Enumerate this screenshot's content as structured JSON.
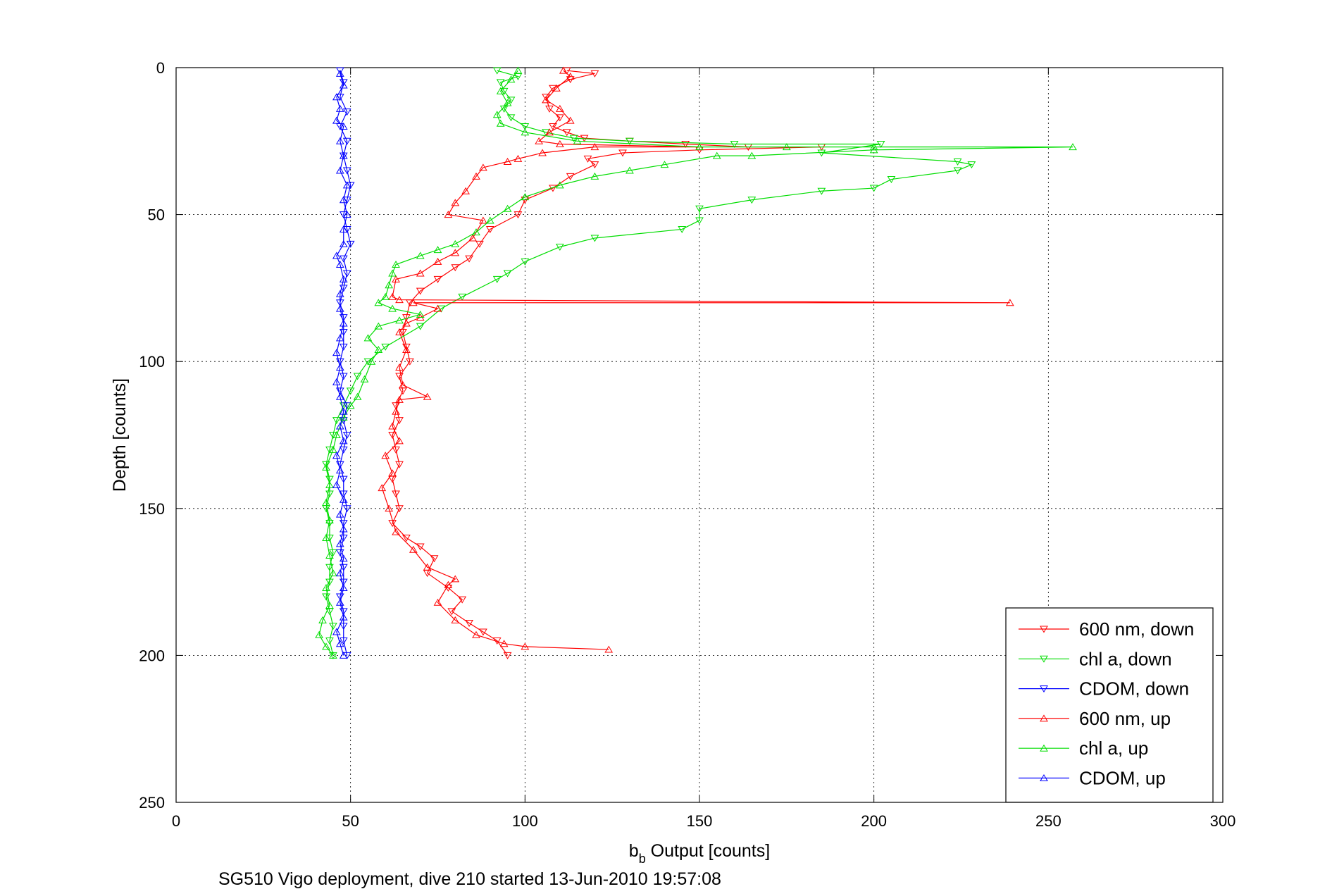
{
  "chart_data": {
    "type": "line",
    "xlabel_main": "b",
    "xlabel_sub": "b",
    "xlabel_rest": " Output [counts]",
    "ylabel": "Depth [counts]",
    "caption": "SG510 Vigo deployment, dive 210 started 13-Jun-2010 19:57:08",
    "xlim": [
      0,
      300
    ],
    "ylim": [
      0,
      250
    ],
    "y_reversed": true,
    "grid": true,
    "xticks": [
      0,
      50,
      100,
      150,
      200,
      250,
      300
    ],
    "yticks": [
      0,
      50,
      100,
      150,
      200,
      250
    ],
    "xtick_labels": [
      "0",
      "50",
      "100",
      "150",
      "200",
      "250",
      "300"
    ],
    "ytick_labels": [
      "0",
      "50",
      "100",
      "150",
      "200",
      "250"
    ],
    "legend_position": "bottom-right",
    "series": [
      {
        "name": "600 nm, down",
        "color": "#ff0000",
        "marker": "triangle-down",
        "points": [
          [
            112,
            1
          ],
          [
            120,
            2
          ],
          [
            113,
            4
          ],
          [
            108,
            7
          ],
          [
            106,
            10
          ],
          [
            107,
            14
          ],
          [
            110,
            17
          ],
          [
            108,
            20
          ],
          [
            112,
            22
          ],
          [
            117,
            24
          ],
          [
            130,
            25
          ],
          [
            146,
            26
          ],
          [
            164,
            27
          ],
          [
            185,
            27
          ],
          [
            150,
            28
          ],
          [
            128,
            29
          ],
          [
            118,
            31
          ],
          [
            120,
            33
          ],
          [
            113,
            37
          ],
          [
            108,
            41
          ],
          [
            100,
            45
          ],
          [
            98,
            50
          ],
          [
            90,
            55
          ],
          [
            87,
            60
          ],
          [
            84,
            65
          ],
          [
            80,
            68
          ],
          [
            75,
            72
          ],
          [
            70,
            76
          ],
          [
            67,
            80
          ],
          [
            66,
            85
          ],
          [
            65,
            90
          ],
          [
            66,
            95
          ],
          [
            67,
            100
          ],
          [
            64,
            105
          ],
          [
            65,
            110
          ],
          [
            63,
            115
          ],
          [
            64,
            120
          ],
          [
            62,
            125
          ],
          [
            63,
            130
          ],
          [
            64,
            135
          ],
          [
            62,
            140
          ],
          [
            63,
            145
          ],
          [
            64,
            150
          ],
          [
            62,
            155
          ],
          [
            66,
            160
          ],
          [
            70,
            163
          ],
          [
            74,
            167
          ],
          [
            72,
            172
          ],
          [
            78,
            177
          ],
          [
            82,
            181
          ],
          [
            79,
            185
          ],
          [
            84,
            189
          ],
          [
            88,
            192
          ],
          [
            92,
            195
          ],
          [
            95,
            200
          ]
        ]
      },
      {
        "name": "chl a, down",
        "color": "#00dd00",
        "marker": "triangle-down",
        "points": [
          [
            92,
            1
          ],
          [
            98,
            3
          ],
          [
            93,
            5
          ],
          [
            94,
            8
          ],
          [
            96,
            11
          ],
          [
            94,
            14
          ],
          [
            96,
            17
          ],
          [
            100,
            20
          ],
          [
            106,
            22
          ],
          [
            114,
            24
          ],
          [
            130,
            25
          ],
          [
            160,
            26
          ],
          [
            202,
            26
          ],
          [
            185,
            29
          ],
          [
            224,
            32
          ],
          [
            228,
            33
          ],
          [
            224,
            35
          ],
          [
            205,
            38
          ],
          [
            200,
            41
          ],
          [
            185,
            42
          ],
          [
            165,
            45
          ],
          [
            150,
            48
          ],
          [
            150,
            52
          ],
          [
            145,
            55
          ],
          [
            120,
            58
          ],
          [
            110,
            61
          ],
          [
            100,
            66
          ],
          [
            95,
            70
          ],
          [
            92,
            72
          ],
          [
            82,
            78
          ],
          [
            76,
            82
          ],
          [
            70,
            88
          ],
          [
            60,
            95
          ],
          [
            55,
            100
          ],
          [
            52,
            105
          ],
          [
            50,
            110
          ],
          [
            48,
            115
          ],
          [
            46,
            120
          ],
          [
            45,
            125
          ],
          [
            44,
            130
          ],
          [
            43,
            135
          ],
          [
            44,
            140
          ],
          [
            44,
            145
          ],
          [
            43,
            150
          ],
          [
            44,
            155
          ],
          [
            44,
            160
          ],
          [
            45,
            165
          ],
          [
            44,
            170
          ],
          [
            44,
            175
          ],
          [
            43,
            180
          ],
          [
            44,
            185
          ],
          [
            45,
            190
          ],
          [
            44,
            195
          ],
          [
            45,
            200
          ]
        ]
      },
      {
        "name": "CDOM, down",
        "color": "#0000ff",
        "marker": "triangle-down",
        "points": [
          [
            47,
            1
          ],
          [
            48,
            5
          ],
          [
            47,
            10
          ],
          [
            49,
            15
          ],
          [
            47,
            20
          ],
          [
            49,
            25
          ],
          [
            48,
            30
          ],
          [
            49,
            35
          ],
          [
            50,
            40
          ],
          [
            49,
            45
          ],
          [
            48,
            50
          ],
          [
            49,
            55
          ],
          [
            50,
            60
          ],
          [
            48,
            65
          ],
          [
            49,
            70
          ],
          [
            48,
            75
          ],
          [
            47,
            80
          ],
          [
            48,
            85
          ],
          [
            48,
            90
          ],
          [
            48,
            95
          ],
          [
            47,
            100
          ],
          [
            48,
            105
          ],
          [
            47,
            110
          ],
          [
            49,
            115
          ],
          [
            48,
            120
          ],
          [
            49,
            125
          ],
          [
            48,
            130
          ],
          [
            47,
            135
          ],
          [
            48,
            140
          ],
          [
            48,
            145
          ],
          [
            49,
            150
          ],
          [
            48,
            155
          ],
          [
            48,
            160
          ],
          [
            47,
            165
          ],
          [
            48,
            170
          ],
          [
            48,
            175
          ],
          [
            47,
            180
          ],
          [
            48,
            185
          ],
          [
            48,
            190
          ],
          [
            48,
            195
          ],
          [
            49,
            200
          ]
        ]
      },
      {
        "name": "600 nm, up",
        "color": "#ff0000",
        "marker": "triangle-up",
        "points": [
          [
            124,
            198
          ],
          [
            100,
            197
          ],
          [
            94,
            196
          ],
          [
            86,
            193
          ],
          [
            80,
            188
          ],
          [
            75,
            182
          ],
          [
            78,
            176
          ],
          [
            80,
            174
          ],
          [
            72,
            170
          ],
          [
            68,
            164
          ],
          [
            63,
            158
          ],
          [
            61,
            150
          ],
          [
            59,
            143
          ],
          [
            62,
            138
          ],
          [
            60,
            132
          ],
          [
            64,
            127
          ],
          [
            62,
            122
          ],
          [
            63,
            117
          ],
          [
            64,
            113
          ],
          [
            72,
            112
          ],
          [
            65,
            108
          ],
          [
            64,
            102
          ],
          [
            66,
            96
          ],
          [
            64,
            90
          ],
          [
            66,
            87
          ],
          [
            70,
            85
          ],
          [
            75,
            82
          ],
          [
            68,
            80
          ],
          [
            239,
            80
          ],
          [
            64,
            79
          ],
          [
            62,
            78
          ],
          [
            63,
            72
          ],
          [
            70,
            70
          ],
          [
            75,
            66
          ],
          [
            80,
            63
          ],
          [
            85,
            58
          ],
          [
            88,
            52
          ],
          [
            78,
            50
          ],
          [
            80,
            46
          ],
          [
            83,
            42
          ],
          [
            86,
            37
          ],
          [
            88,
            34
          ],
          [
            95,
            32
          ],
          [
            98,
            31
          ],
          [
            105,
            29
          ],
          [
            120,
            27
          ],
          [
            150,
            27
          ],
          [
            110,
            26
          ],
          [
            104,
            25
          ],
          [
            107,
            22
          ],
          [
            113,
            18
          ],
          [
            110,
            14
          ],
          [
            106,
            11
          ],
          [
            109,
            7
          ],
          [
            113,
            3
          ],
          [
            111,
            1
          ]
        ]
      },
      {
        "name": "chl a, up",
        "color": "#00dd00",
        "marker": "triangle-up",
        "points": [
          [
            45,
            200
          ],
          [
            43,
            197
          ],
          [
            41,
            193
          ],
          [
            42,
            188
          ],
          [
            44,
            183
          ],
          [
            43,
            177
          ],
          [
            45,
            172
          ],
          [
            44,
            166
          ],
          [
            43,
            160
          ],
          [
            44,
            154
          ],
          [
            43,
            148
          ],
          [
            44,
            142
          ],
          [
            43,
            136
          ],
          [
            45,
            130
          ],
          [
            46,
            125
          ],
          [
            48,
            119
          ],
          [
            50,
            115
          ],
          [
            52,
            112
          ],
          [
            54,
            106
          ],
          [
            56,
            100
          ],
          [
            58,
            96
          ],
          [
            55,
            92
          ],
          [
            58,
            88
          ],
          [
            64,
            86
          ],
          [
            70,
            84
          ],
          [
            62,
            82
          ],
          [
            58,
            80
          ],
          [
            60,
            78
          ],
          [
            61,
            74
          ],
          [
            62,
            70
          ],
          [
            63,
            67
          ],
          [
            70,
            64
          ],
          [
            75,
            62
          ],
          [
            80,
            60
          ],
          [
            86,
            56
          ],
          [
            90,
            52
          ],
          [
            95,
            48
          ],
          [
            100,
            44
          ],
          [
            110,
            40
          ],
          [
            120,
            37
          ],
          [
            130,
            35
          ],
          [
            140,
            33
          ],
          [
            155,
            30
          ],
          [
            165,
            30
          ],
          [
            200,
            28
          ],
          [
            257,
            27
          ],
          [
            200,
            27
          ],
          [
            175,
            27
          ],
          [
            150,
            27
          ],
          [
            115,
            25
          ],
          [
            100,
            22
          ],
          [
            93,
            19
          ],
          [
            92,
            16
          ],
          [
            95,
            12
          ],
          [
            93,
            8
          ],
          [
            96,
            4
          ],
          [
            98,
            1
          ]
        ]
      },
      {
        "name": "CDOM, up",
        "color": "#0000ff",
        "marker": "triangle-up",
        "points": [
          [
            48,
            200
          ],
          [
            47,
            196
          ],
          [
            46,
            192
          ],
          [
            48,
            187
          ],
          [
            47,
            182
          ],
          [
            48,
            177
          ],
          [
            47,
            172
          ],
          [
            48,
            167
          ],
          [
            47,
            162
          ],
          [
            48,
            157
          ],
          [
            47,
            152
          ],
          [
            48,
            147
          ],
          [
            46,
            142
          ],
          [
            47,
            137
          ],
          [
            46,
            132
          ],
          [
            48,
            127
          ],
          [
            47,
            122
          ],
          [
            48,
            117
          ],
          [
            47,
            112
          ],
          [
            46,
            107
          ],
          [
            47,
            102
          ],
          [
            46,
            97
          ],
          [
            47,
            92
          ],
          [
            48,
            87
          ],
          [
            47,
            82
          ],
          [
            47,
            77
          ],
          [
            48,
            72
          ],
          [
            47,
            67
          ],
          [
            46,
            64
          ],
          [
            48,
            60
          ],
          [
            48,
            55
          ],
          [
            49,
            50
          ],
          [
            48,
            45
          ],
          [
            49,
            40
          ],
          [
            47,
            35
          ],
          [
            48,
            30
          ],
          [
            47,
            25
          ],
          [
            48,
            20
          ],
          [
            46,
            18
          ],
          [
            47,
            14
          ],
          [
            46,
            10
          ],
          [
            48,
            6
          ],
          [
            47,
            2
          ]
        ]
      }
    ]
  }
}
